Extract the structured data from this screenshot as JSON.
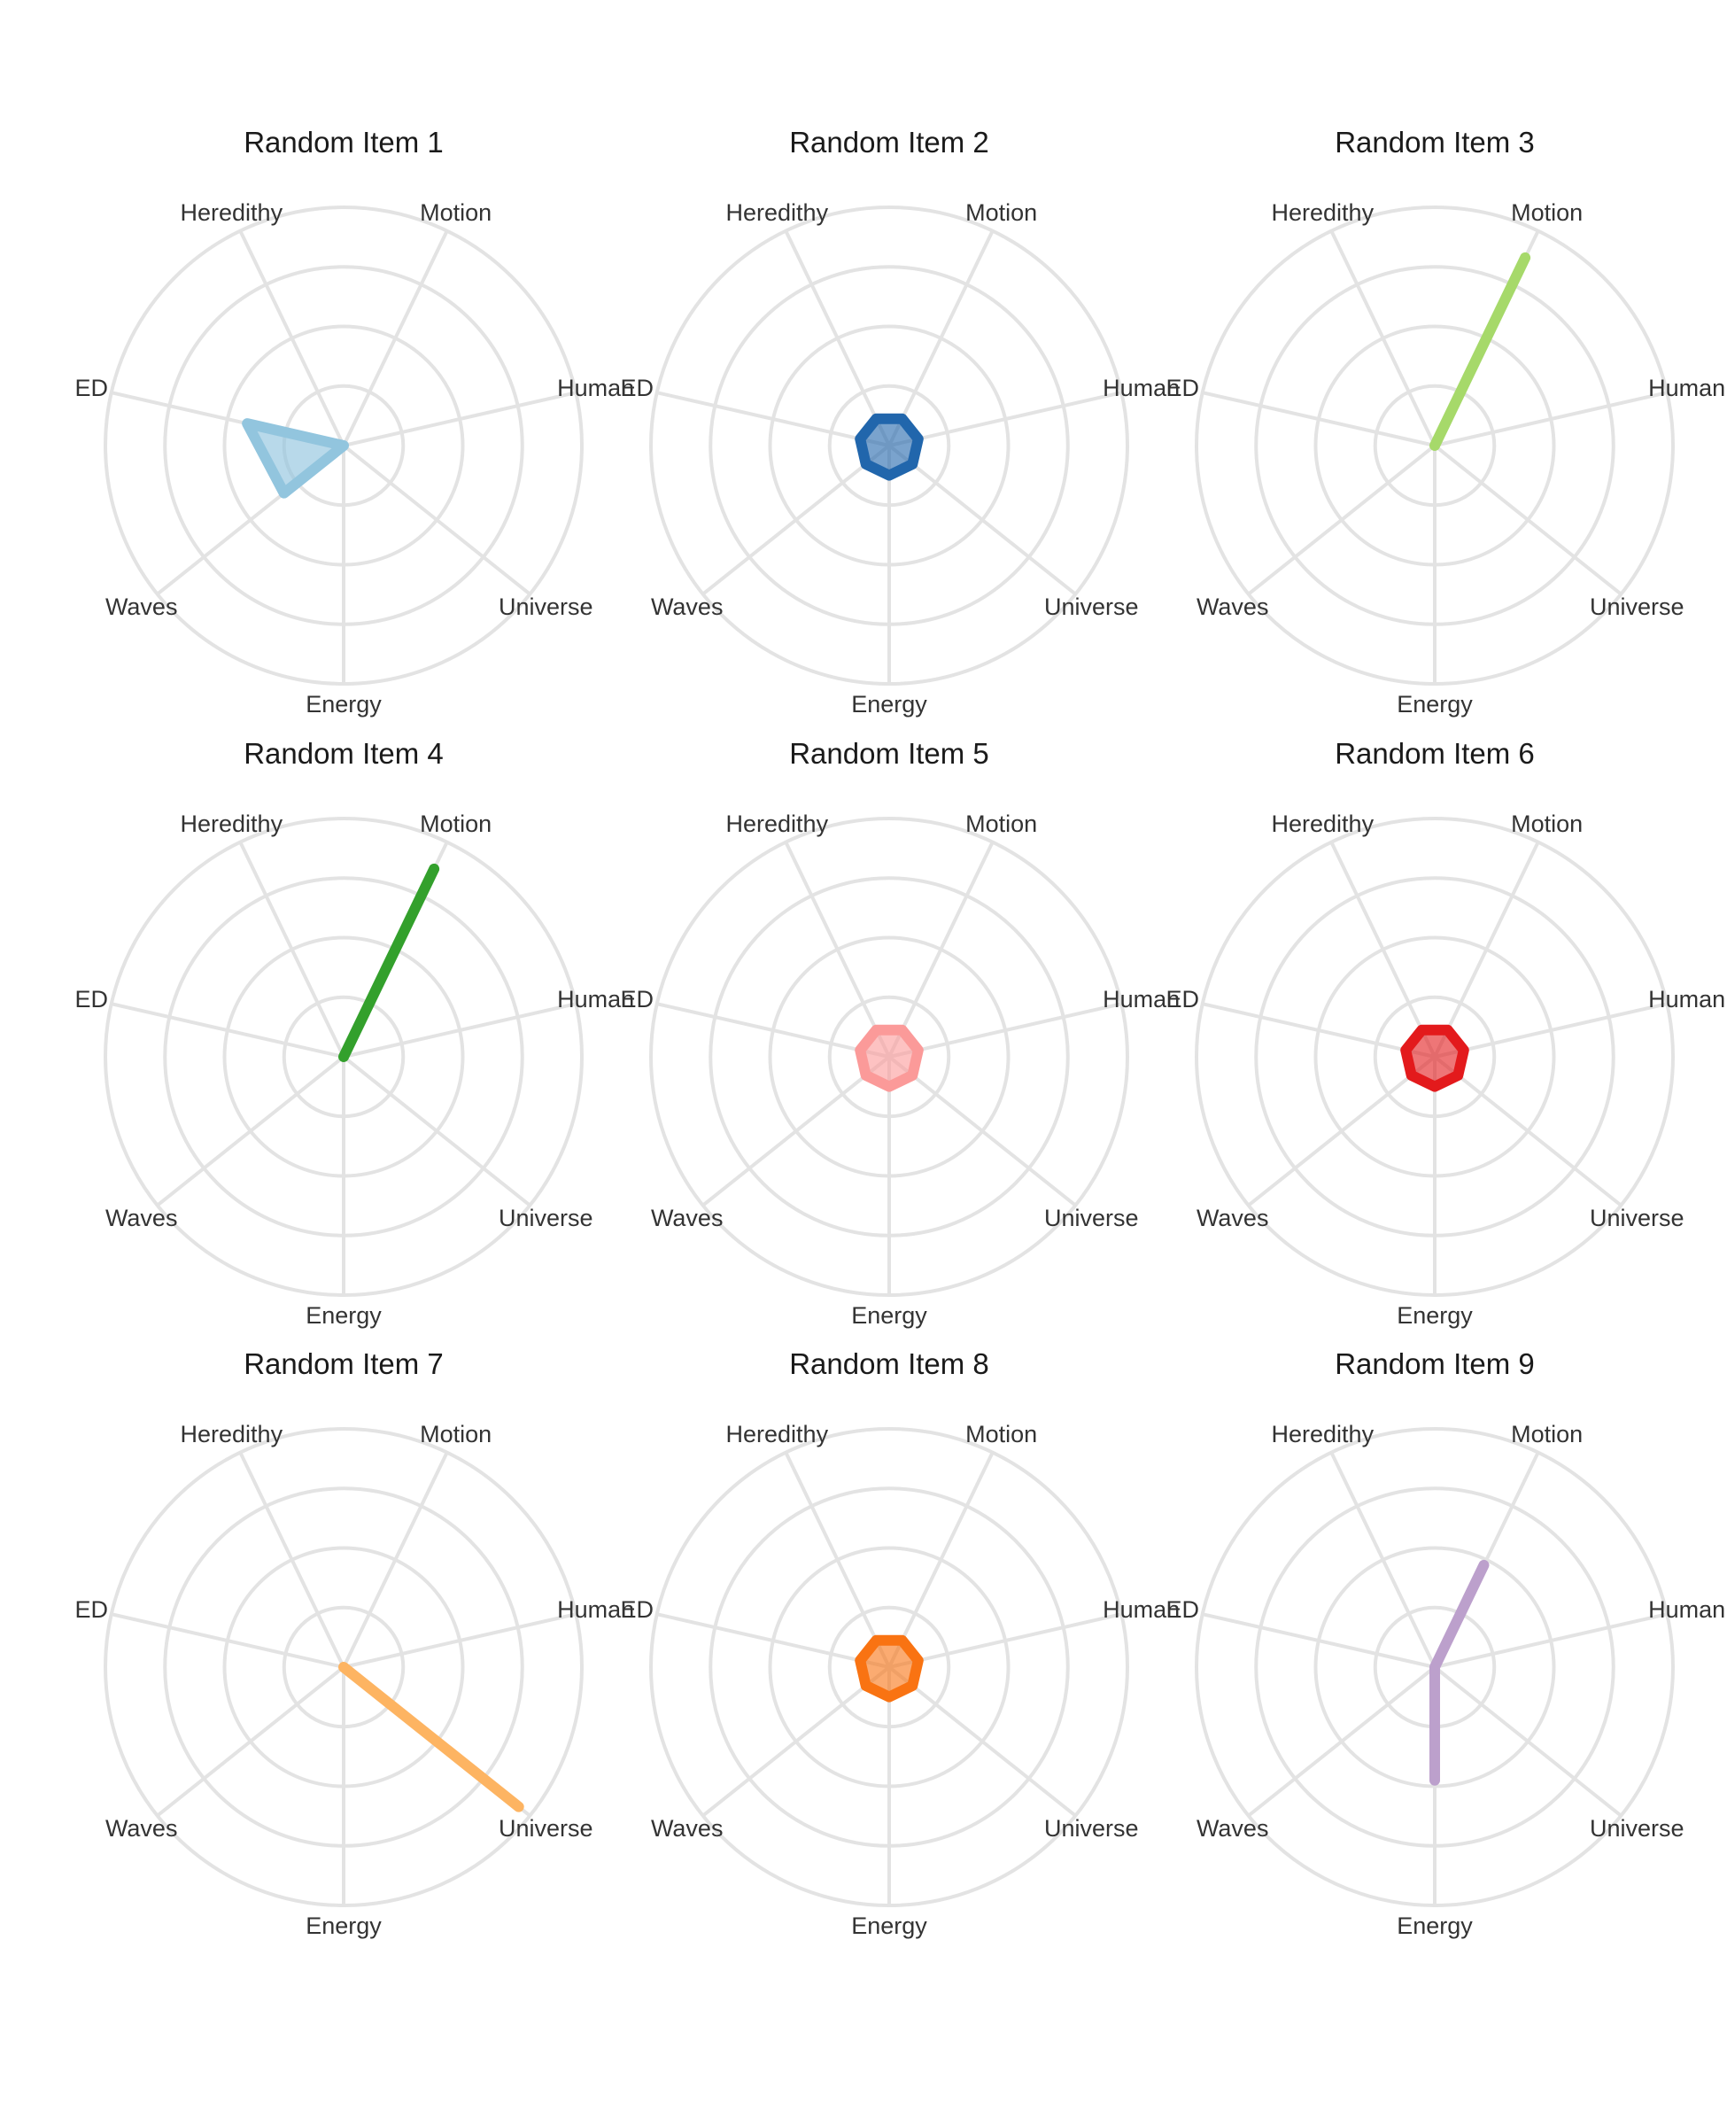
{
  "chart_data": [
    {
      "type": "radar",
      "title": "Random Item 1",
      "axes": [
        "Motion",
        "Human",
        "Universe",
        "Energy",
        "Waves",
        "ED",
        "Heredithy"
      ],
      "values": [
        0,
        0,
        0,
        0,
        0.64,
        0.83,
        0
      ],
      "rlim": [
        0,
        2
      ],
      "color": "#92c5de",
      "fill_opacity": 0.65
    },
    {
      "type": "radar",
      "title": "Random Item 2",
      "axes": [
        "Motion",
        "Human",
        "Universe",
        "Energy",
        "Waves",
        "ED",
        "Heredithy"
      ],
      "values": [
        0.25,
        0.25,
        0.25,
        0.25,
        0.25,
        0.25,
        0.25
      ],
      "rlim": [
        0,
        2
      ],
      "color": "#2166ac",
      "fill_opacity": 0.6
    },
    {
      "type": "radar",
      "title": "Random Item 3",
      "axes": [
        "Motion",
        "Human",
        "Universe",
        "Energy",
        "Waves",
        "ED",
        "Heredithy"
      ],
      "values": [
        1.75,
        0,
        0,
        0,
        0,
        0,
        0
      ],
      "rlim": [
        0,
        2
      ],
      "color": "#a6d96a",
      "fill_opacity": 0.6
    },
    {
      "type": "radar",
      "title": "Random Item 4",
      "axes": [
        "Motion",
        "Human",
        "Universe",
        "Energy",
        "Waves",
        "ED",
        "Heredithy"
      ],
      "values": [
        1.75,
        0,
        0,
        0,
        0,
        0,
        0
      ],
      "rlim": [
        0,
        2
      ],
      "color": "#33a02c",
      "fill_opacity": 0.6
    },
    {
      "type": "radar",
      "title": "Random Item 5",
      "axes": [
        "Motion",
        "Human",
        "Universe",
        "Energy",
        "Waves",
        "ED",
        "Heredithy"
      ],
      "values": [
        0.25,
        0.25,
        0.25,
        0.25,
        0.25,
        0.25,
        0.25
      ],
      "rlim": [
        0,
        2
      ],
      "color": "#fb9a99",
      "fill_opacity": 0.6
    },
    {
      "type": "radar",
      "title": "Random Item 6",
      "axes": [
        "Motion",
        "Human",
        "Universe",
        "Energy",
        "Waves",
        "ED",
        "Heredithy"
      ],
      "values": [
        0.25,
        0.25,
        0.25,
        0.25,
        0.25,
        0.25,
        0.25
      ],
      "rlim": [
        0,
        2
      ],
      "color": "#e31a1c",
      "fill_opacity": 0.6
    },
    {
      "type": "radar",
      "title": "Random Item 7",
      "axes": [
        "Motion",
        "Human",
        "Universe",
        "Energy",
        "Waves",
        "ED",
        "Heredithy"
      ],
      "values": [
        0,
        0,
        1.88,
        0,
        0,
        0,
        0
      ],
      "rlim": [
        0,
        2
      ],
      "color": "#fdb462",
      "fill_opacity": 0.6
    },
    {
      "type": "radar",
      "title": "Random Item 8",
      "axes": [
        "Motion",
        "Human",
        "Universe",
        "Energy",
        "Waves",
        "ED",
        "Heredithy"
      ],
      "values": [
        0.25,
        0.25,
        0.25,
        0.25,
        0.25,
        0.25,
        0.25
      ],
      "rlim": [
        0,
        2
      ],
      "color": "#f97312",
      "fill_opacity": 0.6
    },
    {
      "type": "radar",
      "title": "Random Item 9",
      "axes": [
        "Motion",
        "Human",
        "Universe",
        "Energy",
        "Waves",
        "ED",
        "Heredithy"
      ],
      "values": [
        0.95,
        0,
        0,
        0.95,
        0,
        0,
        0
      ],
      "rlim": [
        0,
        2
      ],
      "color": "#bca0cc",
      "fill_opacity": 0.6
    }
  ]
}
